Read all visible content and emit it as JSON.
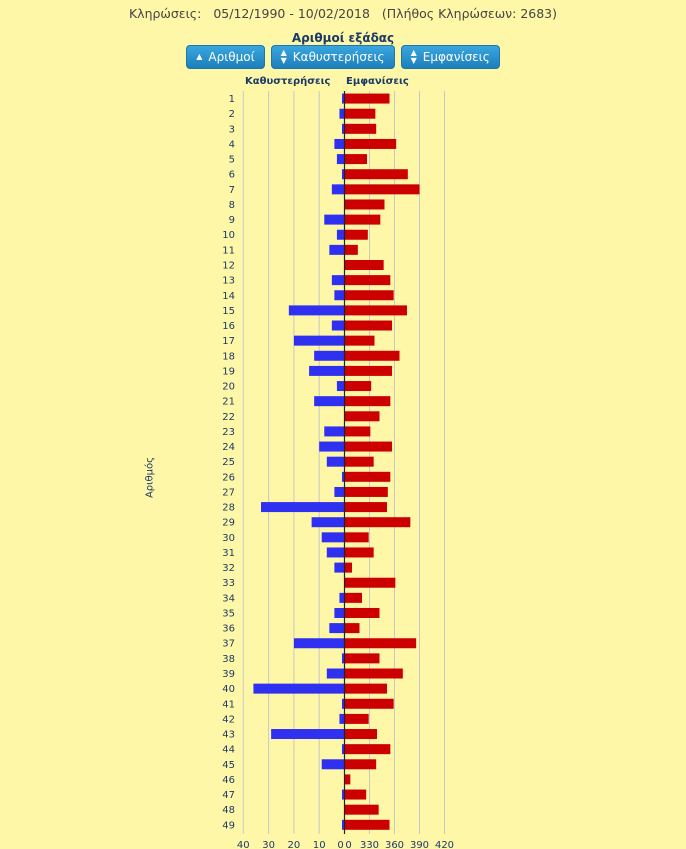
{
  "header": {
    "label": "Κληρώσεις:",
    "date_range": "05/12/1990 - 10/02/2018",
    "count_text": "(Πλήθος Κληρώσεων: 2683)"
  },
  "section_title": "Αριθμοί εξάδας",
  "buttons": [
    {
      "label": "Αριθμοί",
      "icon": "caret-up-icon"
    },
    {
      "label": "Καθυστερήσεις",
      "icon": "sort-icon"
    },
    {
      "label": "Εμφανίσεις",
      "icon": "sort-icon"
    }
  ],
  "colors": {
    "delay": "#3030f0",
    "appearances": "#cc0000"
  },
  "chart_data": {
    "type": "bar",
    "orientation": "horizontal-diverging",
    "ylabel": "Αριθμός",
    "categories": [
      "1",
      "2",
      "3",
      "4",
      "5",
      "6",
      "7",
      "8",
      "9",
      "10",
      "11",
      "12",
      "13",
      "14",
      "15",
      "16",
      "17",
      "18",
      "19",
      "20",
      "21",
      "22",
      "23",
      "24",
      "25",
      "26",
      "27",
      "28",
      "29",
      "30",
      "31",
      "32",
      "33",
      "34",
      "35",
      "36",
      "37",
      "38",
      "39",
      "40",
      "41",
      "42",
      "43",
      "44",
      "45",
      "46",
      "47",
      "48",
      "49"
    ],
    "series": [
      {
        "name": "Καθυστερήσεις",
        "axis_ticks": [
          "40",
          "30",
          "20",
          "10",
          "0"
        ],
        "xlim": [
          0,
          40
        ],
        "values": [
          1,
          2,
          1,
          4,
          3,
          1,
          5,
          0,
          8,
          3,
          6,
          0,
          5,
          4,
          22,
          5,
          20,
          12,
          14,
          3,
          12,
          0,
          8,
          10,
          7,
          1,
          4,
          33,
          13,
          9,
          7,
          4,
          0,
          2,
          4,
          6,
          20,
          1,
          7,
          36,
          1,
          2,
          29,
          1,
          9,
          0,
          1,
          0,
          1
        ]
      },
      {
        "name": "Εμφανίσεις",
        "axis_ticks": [
          "0",
          "330",
          "360",
          "390",
          "420"
        ],
        "axis_breaks": [
          0,
          300,
          330,
          360,
          390,
          420
        ],
        "values": [
          354,
          337,
          338,
          362,
          327,
          376,
          390,
          348,
          343,
          328,
          316,
          347,
          355,
          359,
          375,
          357,
          336,
          366,
          357,
          332,
          355,
          342,
          331,
          357,
          335,
          355,
          352,
          351,
          379,
          329,
          335,
          309,
          361,
          321,
          342,
          318,
          386,
          342,
          370,
          351,
          359,
          329,
          339,
          355,
          338,
          307,
          326,
          341,
          354
        ]
      }
    ]
  }
}
